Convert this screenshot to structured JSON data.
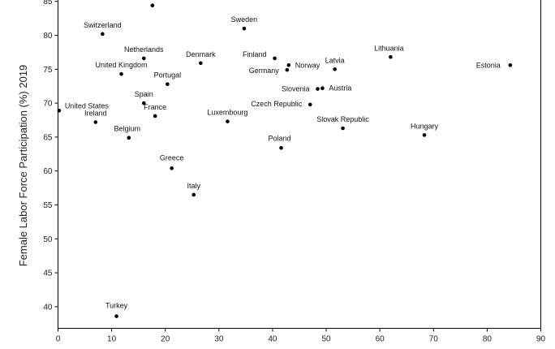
{
  "chart_data": {
    "type": "scatter",
    "title": "",
    "xlabel": "",
    "ylabel": "Female Labor Force Participation (%) 2019",
    "xlim": [
      0,
      90
    ],
    "ylim": [
      37,
      86
    ],
    "xticks": [
      0,
      10,
      20,
      30,
      40,
      50,
      60,
      70,
      80,
      90
    ],
    "yticks": [
      40,
      45,
      50,
      55,
      60,
      65,
      70,
      75,
      80,
      85
    ],
    "grid": false,
    "marker_color": "#000000",
    "points": [
      {
        "label": "",
        "x": 17.6,
        "y": 84.4
      },
      {
        "label": "Switzerland",
        "x": 8.3,
        "y": 80.2
      },
      {
        "label": "Sweden",
        "x": 34.7,
        "y": 81.0
      },
      {
        "label": "Netherlands",
        "x": 16.0,
        "y": 76.6
      },
      {
        "label": "Denmark",
        "x": 26.6,
        "y": 75.9
      },
      {
        "label": "United Kingdom",
        "x": 11.8,
        "y": 74.3
      },
      {
        "label": "Portugal",
        "x": 20.4,
        "y": 72.8
      },
      {
        "label": "Finland",
        "x": 40.4,
        "y": 76.6
      },
      {
        "label": "Norway",
        "x": 43.0,
        "y": 75.6
      },
      {
        "label": "Germany",
        "x": 42.7,
        "y": 74.9
      },
      {
        "label": "Latvia",
        "x": 51.6,
        "y": 75.0
      },
      {
        "label": "Lithuania",
        "x": 62.0,
        "y": 76.8
      },
      {
        "label": "Estonia",
        "x": 84.3,
        "y": 75.6
      },
      {
        "label": "Slovenia",
        "x": 48.4,
        "y": 72.1
      },
      {
        "label": "Austria",
        "x": 49.3,
        "y": 72.2
      },
      {
        "label": "Czech Republic",
        "x": 47.0,
        "y": 69.8
      },
      {
        "label": "Spain",
        "x": 16.0,
        "y": 70.0
      },
      {
        "label": "France",
        "x": 18.1,
        "y": 68.1
      },
      {
        "label": "United States",
        "x": 0.2,
        "y": 68.9
      },
      {
        "label": "Ireland",
        "x": 7.0,
        "y": 67.2
      },
      {
        "label": "Luxembourg",
        "x": 31.6,
        "y": 67.3
      },
      {
        "label": "Slovak Republic",
        "x": 53.1,
        "y": 66.3
      },
      {
        "label": "Hungary",
        "x": 68.3,
        "y": 65.3
      },
      {
        "label": "Belgium",
        "x": 13.2,
        "y": 64.9
      },
      {
        "label": "Poland",
        "x": 41.6,
        "y": 63.4
      },
      {
        "label": "Greece",
        "x": 21.2,
        "y": 60.4
      },
      {
        "label": "Italy",
        "x": 25.3,
        "y": 56.5
      },
      {
        "label": "Turkey",
        "x": 10.9,
        "y": 38.6
      }
    ]
  }
}
